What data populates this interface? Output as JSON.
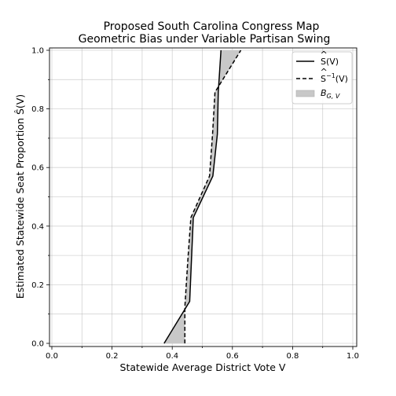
{
  "chart_data": {
    "type": "line",
    "title_lines": [
      "Proposed South Carolina Congress Map",
      "Geometric Bias under Variable Partisan Swing"
    ],
    "xlabel": "Statewide Average District Vote V",
    "ylabel": "Estimated Statewide Seat Proportion Ŝ(V)",
    "xlim": [
      0.0,
      1.0
    ],
    "ylim": [
      0.0,
      1.0
    ],
    "x_ticks": [
      "0.0",
      "0.2",
      "0.4",
      "0.6",
      "0.8",
      "1.0"
    ],
    "y_ticks": [
      "0.0",
      "0.2",
      "0.4",
      "0.6",
      "0.8",
      "1.0"
    ],
    "grid": true,
    "legend_position": "top-right",
    "series": [
      {
        "name": "S(V)",
        "legend_main": "S",
        "legend_suffix": "(V)",
        "line_style": "solid",
        "color": "#000000",
        "points": [
          {
            "x": 0.373,
            "y": 0.0
          },
          {
            "x": 0.458,
            "y": 0.143
          },
          {
            "x": 0.47,
            "y": 0.429
          },
          {
            "x": 0.535,
            "y": 0.571
          },
          {
            "x": 0.55,
            "y": 0.714
          },
          {
            "x": 0.553,
            "y": 0.857
          },
          {
            "x": 0.562,
            "y": 1.0
          }
        ]
      },
      {
        "name": "S^-1(V)",
        "legend_main": "S",
        "legend_sup": "−1",
        "legend_suffix": "(V)",
        "line_style": "dashed",
        "color": "#000000",
        "points": [
          {
            "x": 0.442,
            "y": 0.0
          },
          {
            "x": 0.442,
            "y": 0.125
          },
          {
            "x": 0.452,
            "y": 0.286
          },
          {
            "x": 0.462,
            "y": 0.429
          },
          {
            "x": 0.524,
            "y": 0.571
          },
          {
            "x": 0.534,
            "y": 0.714
          },
          {
            "x": 0.542,
            "y": 0.857
          },
          {
            "x": 0.628,
            "y": 1.0
          }
        ]
      },
      {
        "name": "B_{G,V}",
        "legend_main": "B",
        "legend_sub": "G, V",
        "type": "fill_between",
        "color": "#c8c8c8"
      }
    ]
  }
}
